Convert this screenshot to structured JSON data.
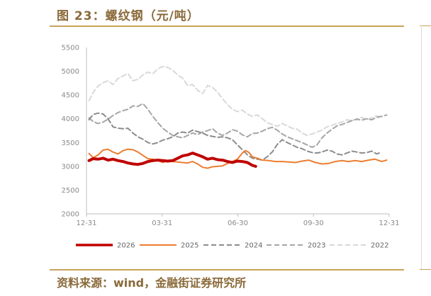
{
  "title": "图 23：螺纹钢（元/吨）",
  "source": "资料来源：wind，金融街证券研究所",
  "chart_data": {
    "type": "line",
    "title": "螺纹钢（元/吨）",
    "x_ticks": [
      "12-31",
      "03-31",
      "06-30",
      "09-30",
      "12-31"
    ],
    "x_range_days": [
      0,
      365
    ],
    "ylim": [
      2000,
      5500
    ],
    "y_ticks": [
      2000,
      2500,
      3000,
      3500,
      4000,
      4500,
      5000,
      5500
    ],
    "grid": false,
    "legend_position": "bottom",
    "series": [
      {
        "name": "2026",
        "color": "#c00000",
        "width": 4,
        "dash": "",
        "points": [
          [
            3,
            3120
          ],
          [
            8,
            3160
          ],
          [
            14,
            3150
          ],
          [
            20,
            3170
          ],
          [
            26,
            3130
          ],
          [
            32,
            3150
          ],
          [
            38,
            3120
          ],
          [
            44,
            3100
          ],
          [
            50,
            3070
          ],
          [
            56,
            3050
          ],
          [
            62,
            3040
          ],
          [
            68,
            3060
          ],
          [
            74,
            3100
          ],
          [
            80,
            3120
          ],
          [
            86,
            3130
          ],
          [
            92,
            3120
          ],
          [
            98,
            3110
          ],
          [
            104,
            3120
          ],
          [
            110,
            3170
          ],
          [
            116,
            3220
          ],
          [
            122,
            3240
          ],
          [
            128,
            3280
          ],
          [
            134,
            3240
          ],
          [
            140,
            3200
          ],
          [
            146,
            3150
          ],
          [
            152,
            3170
          ],
          [
            158,
            3140
          ],
          [
            164,
            3130
          ],
          [
            170,
            3100
          ],
          [
            176,
            3080
          ],
          [
            182,
            3110
          ],
          [
            188,
            3100
          ],
          [
            194,
            3080
          ],
          [
            200,
            3020
          ],
          [
            204,
            3000
          ]
        ]
      },
      {
        "name": "2025",
        "color": "#ed7d31",
        "width": 2,
        "dash": "",
        "points": [
          [
            3,
            3270
          ],
          [
            8,
            3180
          ],
          [
            14,
            3240
          ],
          [
            20,
            3340
          ],
          [
            26,
            3360
          ],
          [
            32,
            3300
          ],
          [
            38,
            3260
          ],
          [
            44,
            3330
          ],
          [
            50,
            3360
          ],
          [
            56,
            3350
          ],
          [
            62,
            3300
          ],
          [
            68,
            3230
          ],
          [
            74,
            3160
          ],
          [
            80,
            3150
          ],
          [
            86,
            3120
          ],
          [
            92,
            3080
          ],
          [
            98,
            3120
          ],
          [
            104,
            3100
          ],
          [
            110,
            3090
          ],
          [
            116,
            3080
          ],
          [
            122,
            3070
          ],
          [
            128,
            3100
          ],
          [
            134,
            3050
          ],
          [
            140,
            2980
          ],
          [
            146,
            2960
          ],
          [
            152,
            2990
          ],
          [
            158,
            3000
          ],
          [
            164,
            3010
          ],
          [
            170,
            3060
          ],
          [
            176,
            3100
          ],
          [
            182,
            3150
          ],
          [
            188,
            3280
          ],
          [
            192,
            3330
          ],
          [
            196,
            3290
          ],
          [
            200,
            3200
          ],
          [
            206,
            3170
          ],
          [
            212,
            3130
          ],
          [
            220,
            3120
          ],
          [
            228,
            3100
          ],
          [
            236,
            3100
          ],
          [
            244,
            3090
          ],
          [
            252,
            3080
          ],
          [
            260,
            3110
          ],
          [
            268,
            3130
          ],
          [
            276,
            3080
          ],
          [
            284,
            3050
          ],
          [
            292,
            3060
          ],
          [
            300,
            3100
          ],
          [
            308,
            3120
          ],
          [
            316,
            3100
          ],
          [
            324,
            3120
          ],
          [
            332,
            3100
          ],
          [
            340,
            3130
          ],
          [
            348,
            3150
          ],
          [
            356,
            3100
          ],
          [
            362,
            3130
          ]
        ]
      },
      {
        "name": "2024",
        "color": "#8c8c8c",
        "width": 2,
        "dash": "7,4",
        "points": [
          [
            3,
            3980
          ],
          [
            8,
            4090
          ],
          [
            14,
            4120
          ],
          [
            20,
            4100
          ],
          [
            26,
            4000
          ],
          [
            32,
            3830
          ],
          [
            38,
            3800
          ],
          [
            44,
            3790
          ],
          [
            50,
            3800
          ],
          [
            56,
            3700
          ],
          [
            62,
            3620
          ],
          [
            68,
            3570
          ],
          [
            74,
            3500
          ],
          [
            80,
            3470
          ],
          [
            86,
            3500
          ],
          [
            92,
            3550
          ],
          [
            98,
            3580
          ],
          [
            104,
            3620
          ],
          [
            110,
            3700
          ],
          [
            116,
            3720
          ],
          [
            122,
            3700
          ],
          [
            128,
            3760
          ],
          [
            134,
            3730
          ],
          [
            140,
            3700
          ],
          [
            146,
            3650
          ],
          [
            152,
            3630
          ],
          [
            158,
            3610
          ],
          [
            164,
            3620
          ],
          [
            170,
            3600
          ],
          [
            176,
            3560
          ],
          [
            182,
            3450
          ],
          [
            188,
            3350
          ],
          [
            194,
            3240
          ],
          [
            200,
            3170
          ],
          [
            206,
            3150
          ],
          [
            212,
            3130
          ],
          [
            218,
            3200
          ],
          [
            224,
            3300
          ],
          [
            230,
            3460
          ],
          [
            236,
            3560
          ],
          [
            242,
            3500
          ],
          [
            248,
            3450
          ],
          [
            254,
            3400
          ],
          [
            260,
            3370
          ],
          [
            266,
            3320
          ],
          [
            272,
            3290
          ],
          [
            278,
            3280
          ],
          [
            284,
            3300
          ],
          [
            290,
            3340
          ],
          [
            296,
            3320
          ],
          [
            302,
            3260
          ],
          [
            308,
            3240
          ],
          [
            314,
            3280
          ],
          [
            320,
            3320
          ],
          [
            326,
            3300
          ],
          [
            332,
            3280
          ],
          [
            338,
            3290
          ],
          [
            344,
            3320
          ],
          [
            350,
            3260
          ],
          [
            356,
            3300
          ]
        ]
      },
      {
        "name": "2023",
        "color": "#a6a6a6",
        "width": 2,
        "dash": "7,4",
        "points": [
          [
            3,
            4020
          ],
          [
            8,
            3940
          ],
          [
            14,
            3900
          ],
          [
            20,
            3930
          ],
          [
            26,
            3990
          ],
          [
            32,
            4070
          ],
          [
            38,
            4130
          ],
          [
            44,
            4170
          ],
          [
            50,
            4200
          ],
          [
            56,
            4270
          ],
          [
            62,
            4260
          ],
          [
            68,
            4320
          ],
          [
            74,
            4200
          ],
          [
            80,
            4050
          ],
          [
            86,
            3920
          ],
          [
            92,
            3800
          ],
          [
            98,
            3720
          ],
          [
            104,
            3650
          ],
          [
            110,
            3620
          ],
          [
            116,
            3600
          ],
          [
            122,
            3650
          ],
          [
            128,
            3700
          ],
          [
            134,
            3670
          ],
          [
            140,
            3720
          ],
          [
            146,
            3750
          ],
          [
            152,
            3790
          ],
          [
            158,
            3700
          ],
          [
            164,
            3650
          ],
          [
            170,
            3700
          ],
          [
            176,
            3770
          ],
          [
            182,
            3740
          ],
          [
            188,
            3660
          ],
          [
            194,
            3620
          ],
          [
            200,
            3690
          ],
          [
            206,
            3700
          ],
          [
            212,
            3740
          ],
          [
            218,
            3790
          ],
          [
            224,
            3820
          ],
          [
            230,
            3760
          ],
          [
            236,
            3680
          ],
          [
            242,
            3620
          ],
          [
            248,
            3580
          ],
          [
            254,
            3540
          ],
          [
            260,
            3500
          ],
          [
            266,
            3450
          ],
          [
            272,
            3400
          ],
          [
            278,
            3450
          ],
          [
            284,
            3600
          ],
          [
            290,
            3700
          ],
          [
            296,
            3780
          ],
          [
            302,
            3850
          ],
          [
            308,
            3880
          ],
          [
            314,
            3920
          ],
          [
            320,
            3960
          ],
          [
            326,
            3990
          ],
          [
            332,
            3970
          ],
          [
            338,
            4000
          ],
          [
            344,
            3980
          ],
          [
            350,
            4030
          ],
          [
            356,
            4050
          ],
          [
            362,
            4080
          ]
        ]
      },
      {
        "name": "2022",
        "color": "#d9d9d9",
        "width": 2,
        "dash": "7,4",
        "points": [
          [
            3,
            4380
          ],
          [
            8,
            4550
          ],
          [
            14,
            4690
          ],
          [
            20,
            4760
          ],
          [
            26,
            4800
          ],
          [
            32,
            4720
          ],
          [
            38,
            4850
          ],
          [
            44,
            4900
          ],
          [
            50,
            4950
          ],
          [
            56,
            4800
          ],
          [
            62,
            4830
          ],
          [
            68,
            4920
          ],
          [
            74,
            4980
          ],
          [
            80,
            4950
          ],
          [
            86,
            5050
          ],
          [
            92,
            5100
          ],
          [
            98,
            5080
          ],
          [
            104,
            5020
          ],
          [
            110,
            4920
          ],
          [
            116,
            4850
          ],
          [
            122,
            4700
          ],
          [
            128,
            4720
          ],
          [
            134,
            4600
          ],
          [
            140,
            4530
          ],
          [
            146,
            4700
          ],
          [
            152,
            4660
          ],
          [
            158,
            4560
          ],
          [
            164,
            4420
          ],
          [
            170,
            4300
          ],
          [
            176,
            4200
          ],
          [
            182,
            4150
          ],
          [
            188,
            4180
          ],
          [
            194,
            4100
          ],
          [
            200,
            4050
          ],
          [
            206,
            4080
          ],
          [
            212,
            4000
          ],
          [
            218,
            3920
          ],
          [
            224,
            3880
          ],
          [
            230,
            3840
          ],
          [
            236,
            3900
          ],
          [
            242,
            3850
          ],
          [
            248,
            3800
          ],
          [
            254,
            3780
          ],
          [
            260,
            3700
          ],
          [
            266,
            3650
          ],
          [
            272,
            3680
          ],
          [
            278,
            3720
          ],
          [
            284,
            3760
          ],
          [
            290,
            3830
          ],
          [
            296,
            3860
          ],
          [
            302,
            3900
          ],
          [
            308,
            3930
          ],
          [
            314,
            3980
          ],
          [
            320,
            3960
          ],
          [
            326,
            4000
          ],
          [
            332,
            4030
          ],
          [
            338,
            3980
          ],
          [
            344,
            4020
          ],
          [
            350,
            4060
          ],
          [
            356,
            4040
          ]
        ]
      }
    ]
  }
}
